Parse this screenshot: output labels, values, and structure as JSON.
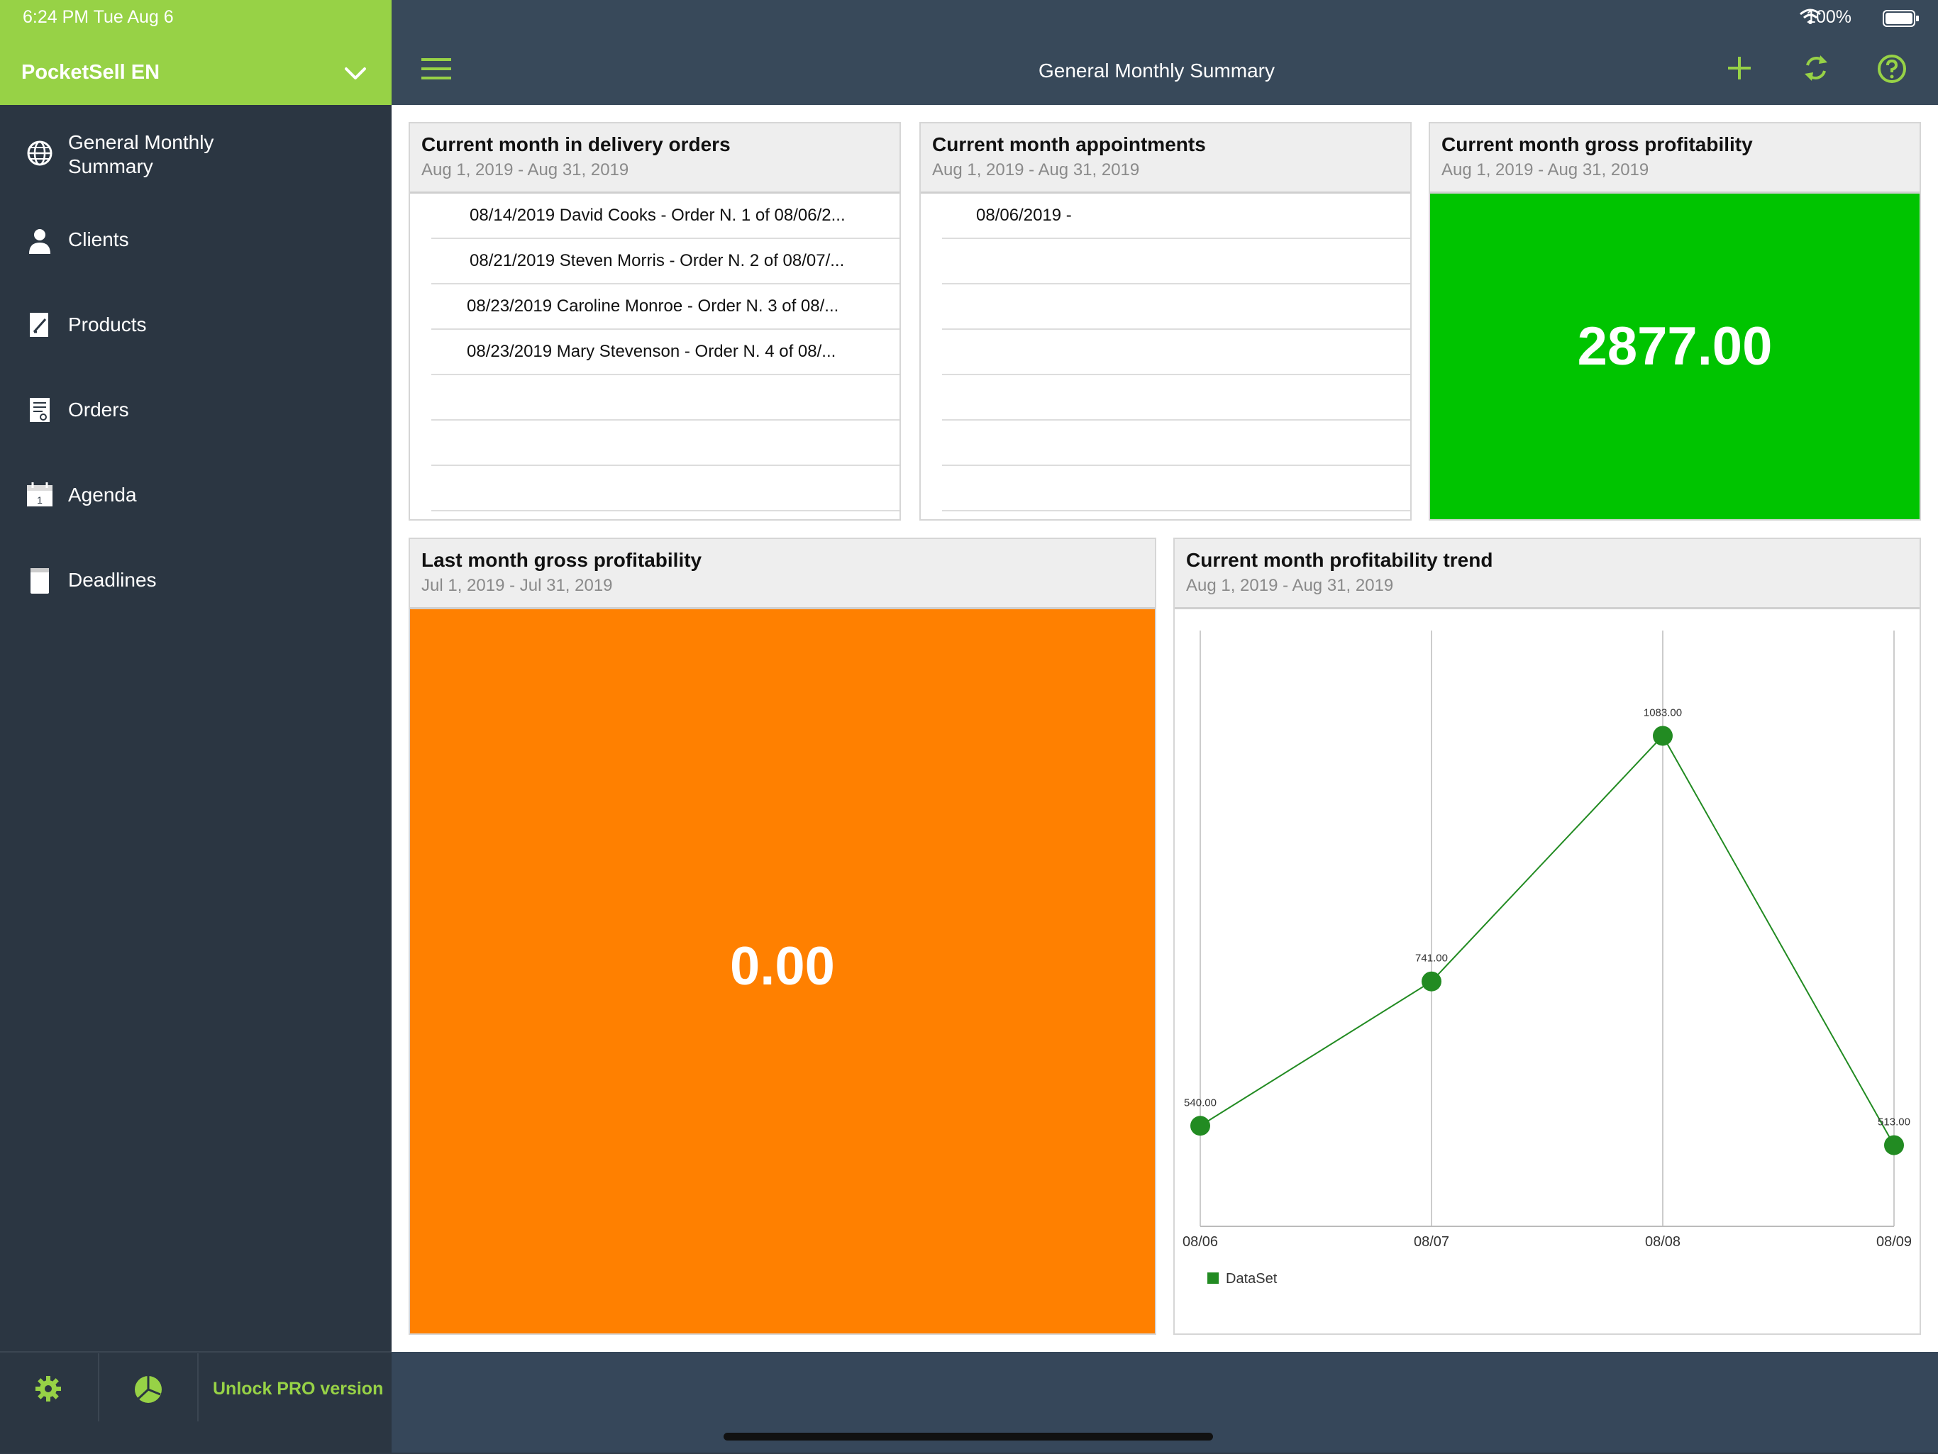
{
  "status": {
    "time": "6:24 PM   Tue Aug 6",
    "battery": "100%"
  },
  "sidebar": {
    "app_title": "PocketSell EN",
    "items": [
      {
        "label": "General Monthly\nSummary",
        "icon": "globe-icon"
      },
      {
        "label": "Clients",
        "icon": "user-icon"
      },
      {
        "label": "Products",
        "icon": "edit-icon"
      },
      {
        "label": "Orders",
        "icon": "receipt-icon"
      },
      {
        "label": "Agenda",
        "icon": "calendar-icon"
      },
      {
        "label": "Deadlines",
        "icon": "notebook-icon"
      }
    ],
    "footer": {
      "unlock_label": "Unlock PRO version"
    },
    "calendar_day": "1"
  },
  "topbar": {
    "title": "General Monthly Summary"
  },
  "cards": {
    "delivery": {
      "title": "Current month in delivery orders",
      "range": "Aug 1, 2019 - Aug 31, 2019",
      "rows": [
        "08/14/2019  David Cooks -  Order N. 1 of 08/06/2...",
        "08/21/2019  Steven Morris -  Order N. 2 of 08/07/...",
        "08/23/2019  Caroline Monroe -  Order N. 3 of 08/...",
        "08/23/2019  Mary Stevenson -  Order N. 4 of 08/..."
      ]
    },
    "appointments": {
      "title": "Current month appointments",
      "range": "Aug 1, 2019 - Aug 31, 2019",
      "rows": [
        "08/06/2019   -"
      ]
    },
    "gross_current": {
      "title": "Current month gross profitability",
      "range": "Aug 1, 2019 - Aug 31, 2019",
      "value": "2877.00",
      "color": "#00c400"
    },
    "gross_last": {
      "title": "Last month gross profitability",
      "range": "Jul 1, 2019 - Jul 31, 2019",
      "value": "0.00",
      "color": "#ff8000"
    },
    "trend": {
      "title": "Current month profitability trend",
      "range": "Aug 1, 2019 - Aug 31, 2019"
    }
  },
  "chart_data": {
    "type": "line",
    "x": [
      "08/06",
      "08/07",
      "08/08",
      "08/09"
    ],
    "series": [
      {
        "name": "DataSet",
        "values": [
          540.0,
          741.0,
          1083.0,
          513.0
        ]
      }
    ],
    "data_labels": [
      "540.00",
      "741.00",
      "1083.00",
      "513.00"
    ],
    "color": "#228b22",
    "grid": "vertical",
    "legend": "bottom-left"
  }
}
